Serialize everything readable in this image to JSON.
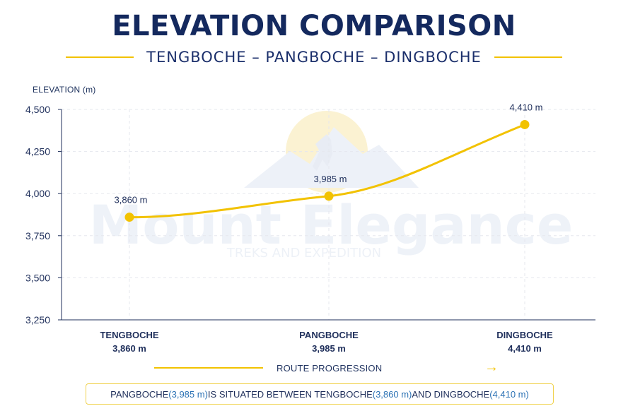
{
  "header": {
    "title": "ELEVATION COMPARISON",
    "subtitle": "TENGBOCHE – PANGBOCHE – DINGBOCHE"
  },
  "watermark": {
    "text": "Mount Elegance",
    "subtext": "TREKS AND EXPEDITION"
  },
  "chart_data": {
    "type": "line",
    "categories": [
      "TENGBOCHE",
      "PANGBOCHE",
      "DINGBOCHE"
    ],
    "series": [
      {
        "values": [
          3860,
          3985,
          4410
        ],
        "color": "#f2c200"
      }
    ],
    "ylabel": "ELEVATION (m)",
    "ylim": [
      3250,
      4500
    ],
    "yticks": [
      "4,500",
      "4,250",
      "4,000",
      "3,750",
      "3,500",
      "3,250"
    ],
    "point_labels": [
      "3,860 m",
      "3,985 m",
      "4,410 m"
    ],
    "category_value_labels": [
      "3,860 m",
      "3,985 m",
      "4,410 m"
    ],
    "grid": true,
    "xlabel": "ROUTE PROGRESSION"
  },
  "note": {
    "parts": [
      "PANGBOCHE ",
      "(3,985 m)",
      " IS SITUATED BETWEEN TENGBOCHE ",
      "(3,860 m)",
      " AND DINGBOCHE ",
      "(4,410 m)"
    ]
  },
  "colors": {
    "navy": "#14295e",
    "gold": "#f2c200",
    "grid": "#e5e7ee",
    "accent_blue": "#2d73b5"
  }
}
